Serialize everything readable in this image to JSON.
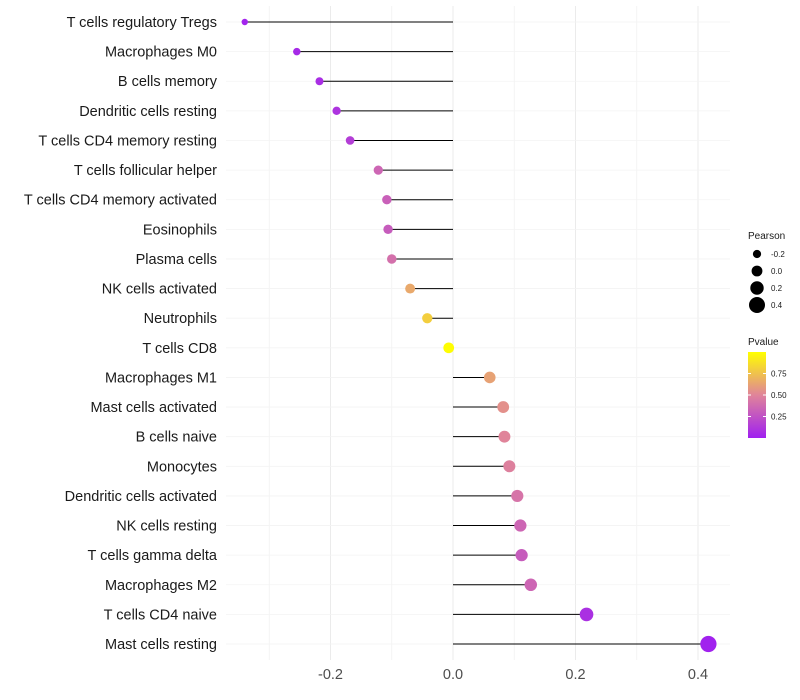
{
  "chart_data": {
    "type": "lollipop",
    "categories": [
      "T cells regulatory  Tregs",
      "Macrophages M0",
      "B cells memory",
      "Dendritic cells resting",
      "T cells CD4 memory resting",
      "T cells follicular helper",
      "T cells CD4 memory activated",
      "Eosinophils",
      "Plasma cells",
      "NK cells activated",
      "Neutrophils",
      "T cells CD8",
      "Macrophages M1",
      "Mast cells activated",
      "B cells naive",
      "Monocytes",
      "Dendritic cells activated",
      "NK cells resting",
      "T cells gamma delta",
      "Macrophages M2",
      "T cells CD4 naive",
      "Mast cells resting"
    ],
    "values": [
      -0.34,
      -0.255,
      -0.218,
      -0.19,
      -0.168,
      -0.122,
      -0.108,
      -0.106,
      -0.1,
      -0.07,
      -0.042,
      -0.007,
      0.06,
      0.082,
      0.084,
      0.092,
      0.105,
      0.11,
      0.112,
      0.127,
      0.218,
      0.417
    ],
    "pvalues": [
      0.02,
      0.05,
      0.07,
      0.1,
      0.15,
      0.35,
      0.32,
      0.3,
      0.4,
      0.65,
      0.8,
      0.99,
      0.62,
      0.55,
      0.5,
      0.48,
      0.42,
      0.35,
      0.3,
      0.35,
      0.08,
      0.01
    ],
    "xlim": [
      -0.36,
      0.44
    ],
    "xticks": [
      -0.2,
      0.0,
      0.2,
      0.4
    ],
    "xtick_labels": [
      "-0.2",
      "0.0",
      "0.2",
      "0.4"
    ],
    "xlabel": "",
    "ylabel": "",
    "title": "",
    "size_legend": {
      "title": "Pearson",
      "values": [
        -0.2,
        0.0,
        0.2,
        0.4
      ],
      "labels": [
        "-0.2",
        "0.0",
        "0.2",
        "0.4"
      ]
    },
    "color_legend": {
      "title": "Pvalue",
      "ticks": [
        0.25,
        0.5,
        0.75
      ],
      "tick_labels": [
        "0.25",
        "0.50",
        "0.75"
      ],
      "range": [
        0.0,
        1.0
      ],
      "low_color": "#a020f0",
      "mid_color": "#e0849a",
      "high_color": "#ffff00"
    },
    "grid": true,
    "legend_position": "right"
  }
}
